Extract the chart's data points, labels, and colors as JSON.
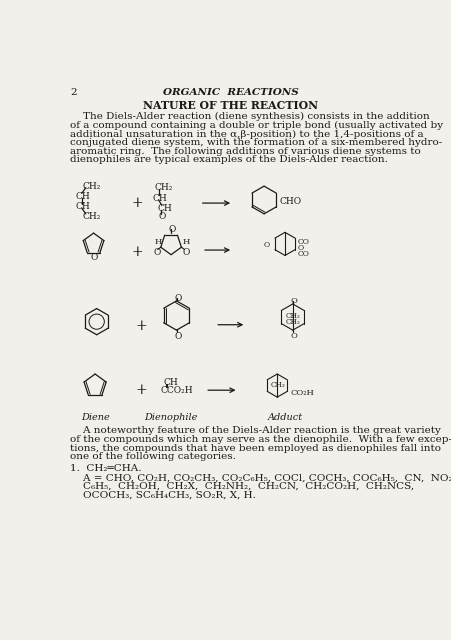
{
  "bg_color": "#f2f0eb",
  "text_color": "#1a1a1a",
  "page_number": "2",
  "header": "ORGANIC  REACTIONS",
  "section_title": "NATURE OF THE REACTION",
  "label_diene": "Diene",
  "label_dienophile": "Dienophile",
  "label_adduct": "Adduct",
  "para1_lines": [
    "    The Diels-Alder reaction (diene synthesis) consists in the addition",
    "of a compound containing a double or triple bond (usually activated by",
    "additional unsaturation in the α,β-position) to the 1,4-positions of a",
    "conjugated diene system, with the formation of a six-membered hydro-",
    "aromatic ring.  The following additions of various diene systems to",
    "dienophiles are typical examples of the Diels-Alder reaction."
  ],
  "para2_lines": [
    "    A noteworthy feature of the Diels-Alder reaction is the great variety",
    "of the compounds which may serve as the dienophile.  With a few excep-",
    "tions, the compounds that have been employed as dienophiles fall into",
    "one of the following categories."
  ],
  "item1": "1.  CH₂═CHA.",
  "sub_lines": [
    "    A = CHO, CO₂H, CO₂CH₃, CO₂C₆H₅, COCl, COCH₃, COC₆H₅,  CN,  NO₂,",
    "    C₆H₅,  CH₂OH,  CH₂X,  CH₂NH₂,  CH₂CN,  CH₂CO₂H,  CH₂NCS,",
    "    OCOCH₃, SC₆H₄CH₃, SO₂R, X, H."
  ]
}
